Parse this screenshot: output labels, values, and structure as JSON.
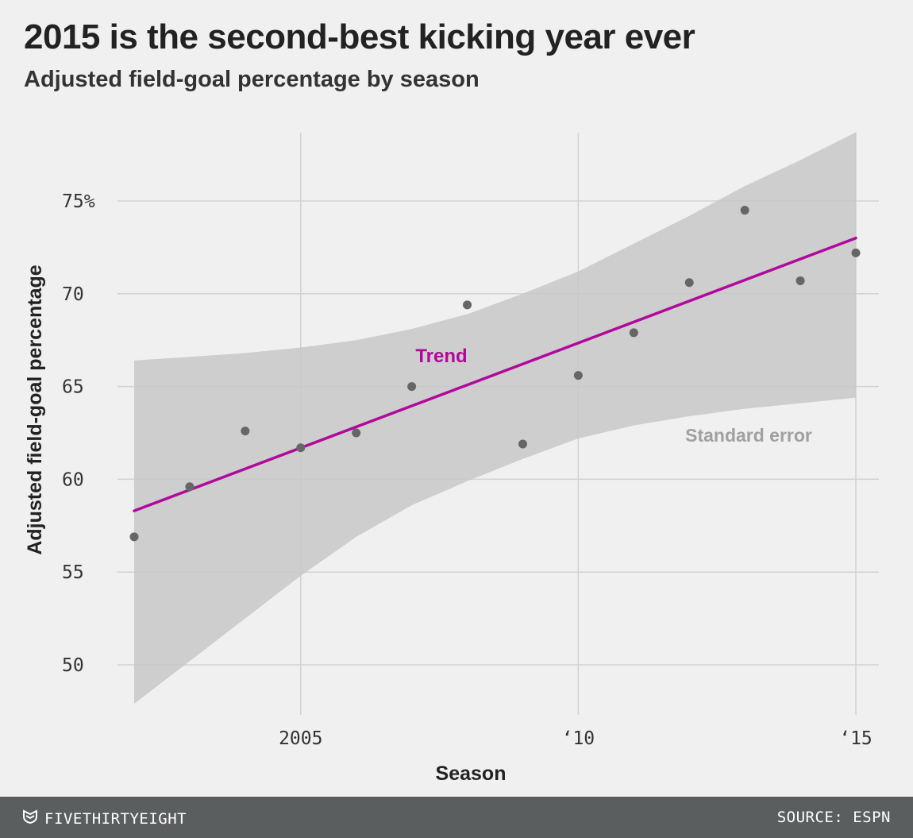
{
  "title": "2015 is the second-best kicking year ever",
  "subtitle": "Adjusted field-goal percentage by season",
  "footer": {
    "brand": "FIVETHIRTYEIGHT",
    "brand_icon": "fivethirtyeight-logo-icon",
    "source": "SOURCE: ESPN"
  },
  "colors": {
    "background": "#f0f0f0",
    "trend": "#b0099b",
    "band": "#c8c8c8",
    "points": "#666666",
    "band_label": "#a0a0a0",
    "footer": "#5b5e5f"
  },
  "chart_data": {
    "type": "scatter",
    "title": "2015 is the second-best kicking year ever",
    "subtitle": "Adjusted field-goal percentage by season",
    "xlabel": "Season",
    "ylabel": "Adjusted field-goal percentage",
    "xlim": [
      2002,
      2015
    ],
    "ylim": [
      48,
      78
    ],
    "xticks": [
      {
        "value": 2005,
        "label": "2005"
      },
      {
        "value": 2010,
        "label": "‘10"
      },
      {
        "value": 2015,
        "label": "‘15"
      }
    ],
    "yticks": [
      {
        "value": 50,
        "label": "50"
      },
      {
        "value": 55,
        "label": "55"
      },
      {
        "value": 60,
        "label": "60"
      },
      {
        "value": 65,
        "label": "65"
      },
      {
        "value": 70,
        "label": "70"
      },
      {
        "value": 75,
        "label": "75%"
      }
    ],
    "grid": true,
    "points": [
      {
        "x": 2002,
        "y": 56.9
      },
      {
        "x": 2003,
        "y": 59.6
      },
      {
        "x": 2004,
        "y": 62.6
      },
      {
        "x": 2005,
        "y": 61.7
      },
      {
        "x": 2006,
        "y": 62.5
      },
      {
        "x": 2007,
        "y": 65.0
      },
      {
        "x": 2008,
        "y": 69.4
      },
      {
        "x": 2009,
        "y": 61.9
      },
      {
        "x": 2010,
        "y": 65.6
      },
      {
        "x": 2011,
        "y": 67.9
      },
      {
        "x": 2012,
        "y": 70.6
      },
      {
        "x": 2013,
        "y": 74.5
      },
      {
        "x": 2014,
        "y": 70.7
      },
      {
        "x": 2015,
        "y": 72.2
      }
    ],
    "trend": {
      "label": "Trend",
      "start": {
        "x": 2002,
        "y": 58.3
      },
      "end": {
        "x": 2015,
        "y": 73.0
      }
    },
    "standard_error": {
      "label": "Standard error",
      "upper": [
        {
          "x": 2002,
          "y": 66.4
        },
        {
          "x": 2003,
          "y": 66.6
        },
        {
          "x": 2004,
          "y": 66.8
        },
        {
          "x": 2005,
          "y": 67.1
        },
        {
          "x": 2006,
          "y": 67.5
        },
        {
          "x": 2007,
          "y": 68.1
        },
        {
          "x": 2008,
          "y": 68.9
        },
        {
          "x": 2009,
          "y": 70.0
        },
        {
          "x": 2010,
          "y": 71.2
        },
        {
          "x": 2011,
          "y": 72.7
        },
        {
          "x": 2012,
          "y": 74.2
        },
        {
          "x": 2013,
          "y": 75.8
        },
        {
          "x": 2014,
          "y": 77.2
        },
        {
          "x": 2015,
          "y": 78.7
        }
      ],
      "lower": [
        {
          "x": 2002,
          "y": 47.9
        },
        {
          "x": 2003,
          "y": 50.2
        },
        {
          "x": 2004,
          "y": 52.5
        },
        {
          "x": 2005,
          "y": 54.8
        },
        {
          "x": 2006,
          "y": 56.9
        },
        {
          "x": 2007,
          "y": 58.6
        },
        {
          "x": 2008,
          "y": 59.9
        },
        {
          "x": 2009,
          "y": 61.1
        },
        {
          "x": 2010,
          "y": 62.2
        },
        {
          "x": 2011,
          "y": 62.9
        },
        {
          "x": 2012,
          "y": 63.4
        },
        {
          "x": 2013,
          "y": 63.8
        },
        {
          "x": 2014,
          "y": 64.1
        },
        {
          "x": 2015,
          "y": 64.4
        }
      ]
    }
  }
}
